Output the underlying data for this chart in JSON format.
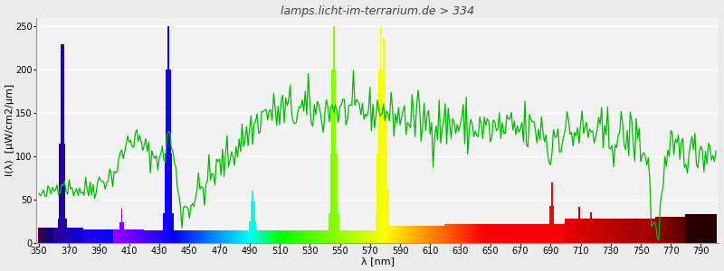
{
  "title": "lamps.licht-im-terrarium.de > 334",
  "xlabel": "λ [nm]",
  "ylabel": "I(λ)  [μW/cm2/μm]",
  "xlim": [
    348,
    802
  ],
  "ylim": [
    0,
    260
  ],
  "yticks": [
    0,
    50,
    100,
    150,
    200,
    250
  ],
  "xticks": [
    350,
    370,
    390,
    410,
    430,
    450,
    470,
    490,
    510,
    530,
    550,
    570,
    590,
    610,
    630,
    650,
    670,
    690,
    710,
    730,
    750,
    770,
    790
  ],
  "background_color": "#ebebeb",
  "plot_bg": "#f2f2f2",
  "grid_color": "#ffffff",
  "title_fontsize": 9,
  "label_fontsize": 8,
  "tick_fontsize": 7,
  "line_color": "#00bb00",
  "line_width": 0.9
}
